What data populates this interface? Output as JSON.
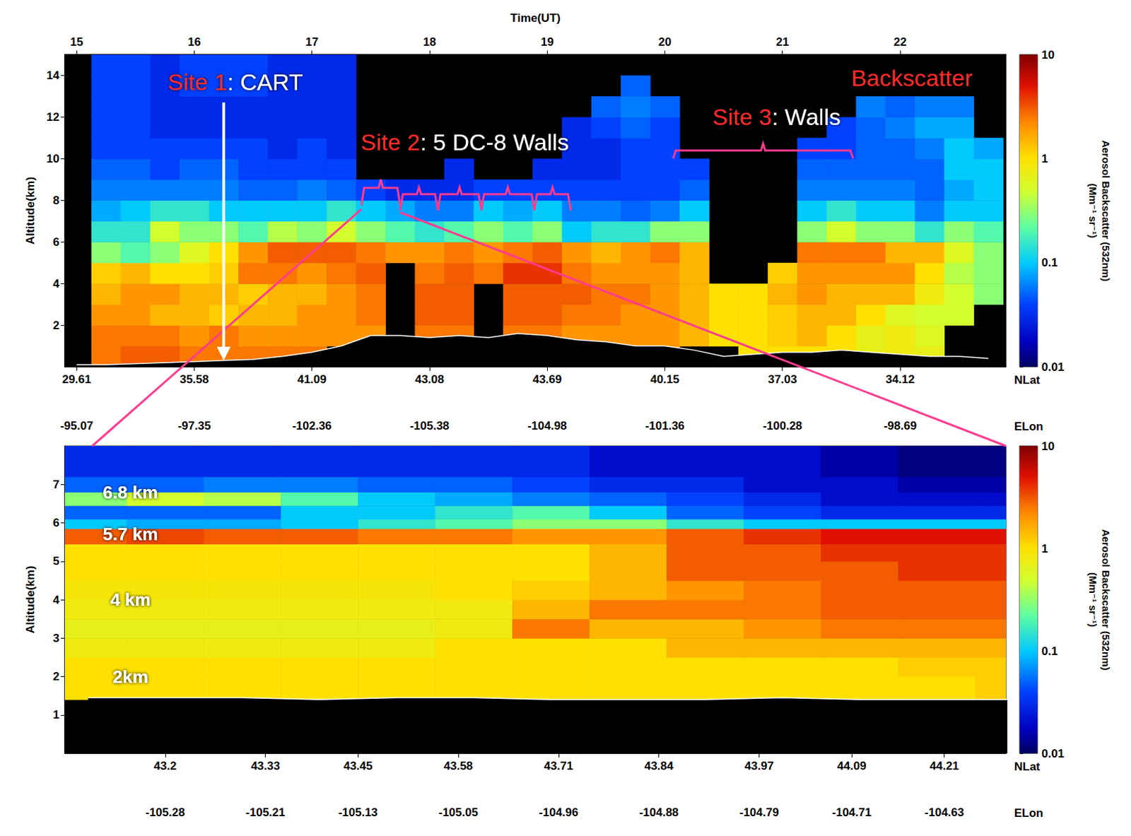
{
  "chart_data": [
    {
      "type": "heatmap",
      "x_label": "Time(UT)",
      "y_label": "Altitude(km)",
      "xlim": [
        14.9,
        22.9
      ],
      "xticks": [
        15,
        16,
        17,
        18,
        19,
        20,
        21,
        22
      ],
      "ylim": [
        0,
        15
      ],
      "yticks": [
        2,
        4,
        6,
        8,
        10,
        12,
        14
      ],
      "grid": false,
      "secondary_x_axes": [
        {
          "label": "NLat",
          "ticks": [
            {
              "value": 15,
              "label": "29.61"
            },
            {
              "value": 16,
              "label": "35.58"
            },
            {
              "value": 17,
              "label": "41.09"
            },
            {
              "value": 18,
              "label": "43.08"
            },
            {
              "value": 19,
              "label": "43.69"
            },
            {
              "value": 20,
              "label": "40.15"
            },
            {
              "value": 21,
              "label": "37.03"
            },
            {
              "value": 22,
              "label": "34.12"
            }
          ]
        },
        {
          "label": "ELon",
          "ticks": [
            {
              "value": 15,
              "label": "-95.07"
            },
            {
              "value": 16,
              "label": "-97.35"
            },
            {
              "value": 17,
              "label": "-102.36"
            },
            {
              "value": 18,
              "label": "-105.38"
            },
            {
              "value": 19,
              "label": "-104.98"
            },
            {
              "value": 20,
              "label": "-101.36"
            },
            {
              "value": 21,
              "label": "-100.28"
            },
            {
              "value": 22,
              "label": "-98.69"
            }
          ]
        }
      ],
      "x_edges": [
        14.875,
        15.125,
        15.375,
        15.625,
        15.875,
        16.125,
        16.375,
        16.625,
        16.875,
        17.125,
        17.375,
        17.625,
        17.875,
        18.125,
        18.375,
        18.625,
        18.875,
        19.125,
        19.375,
        19.625,
        19.875,
        20.125,
        20.375,
        20.625,
        20.875,
        21.125,
        21.375,
        21.625,
        21.875,
        22.125,
        22.375,
        22.625,
        22.875
      ],
      "y_edges": [
        0,
        1,
        2,
        3,
        4,
        5,
        6,
        7,
        8,
        9,
        10,
        11,
        12,
        13,
        14,
        15
      ],
      "cells": [
        [
          null,
          null,
          null,
          null,
          null,
          null,
          null,
          null,
          null,
          null,
          null,
          null,
          null,
          null,
          null
        ],
        [
          2.5,
          2.5,
          2,
          1.5,
          1.2,
          0.3,
          0.15,
          0.08,
          0.06,
          0.05,
          0.04,
          0.04,
          0.04,
          0.04,
          0.04
        ],
        [
          3,
          2.5,
          2,
          2,
          1.5,
          0.2,
          0.15,
          0.1,
          0.06,
          0.05,
          0.04,
          0.04,
          0.04,
          0.04,
          0.04
        ],
        [
          3,
          2.5,
          1.5,
          2,
          1,
          0.3,
          0.5,
          0.15,
          0.06,
          0.04,
          0.04,
          0.03,
          0.03,
          0.03,
          0.03
        ],
        [
          2.5,
          2,
          1.5,
          1.5,
          1,
          0.6,
          0.3,
          0.15,
          0.06,
          0.05,
          0.04,
          0.03,
          0.03,
          0.04,
          0.04
        ],
        [
          2.5,
          2.5,
          1.2,
          1.5,
          1.2,
          1,
          0.3,
          0.1,
          0.06,
          0.05,
          0.04,
          0.03,
          0.03,
          0.04,
          0.04
        ],
        [
          2.5,
          2,
          1.5,
          1.2,
          2.5,
          2,
          0.2,
          0.1,
          0.05,
          0.04,
          0.04,
          0.03,
          0.03,
          0.04,
          0.04
        ],
        [
          2.5,
          2,
          1.5,
          1.5,
          2.5,
          3,
          0.4,
          0.1,
          0.05,
          0.04,
          0.03,
          0.03,
          0.03,
          0.03,
          0.03
        ],
        [
          2.5,
          2,
          2,
          1.5,
          2,
          3,
          0.3,
          0.1,
          0.06,
          0.04,
          0.04,
          0.03,
          0.03,
          0.03,
          0.03
        ],
        [
          null,
          2,
          2,
          2,
          2.5,
          3,
          0.5,
          0.15,
          0.05,
          0.04,
          0.03,
          0.03,
          0.03,
          0.03,
          0.03
        ],
        [
          null,
          2,
          2.5,
          2.5,
          3,
          2.5,
          0.3,
          0.1,
          0.04,
          null,
          null,
          null,
          null,
          null,
          null
        ],
        [
          null,
          null,
          null,
          null,
          null,
          2,
          0.2,
          0.08,
          0.03,
          null,
          null,
          null,
          null,
          null,
          null
        ],
        [
          null,
          2.5,
          3,
          3,
          2.5,
          2,
          0.15,
          0.06,
          0.03,
          null,
          null,
          null,
          null,
          null,
          null
        ],
        [
          null,
          2.5,
          3,
          3,
          3,
          2.5,
          0.2,
          0.06,
          0.03,
          0.03,
          null,
          null,
          null,
          null,
          null
        ],
        [
          null,
          null,
          null,
          null,
          2.5,
          2,
          0.3,
          0.1,
          0.04,
          null,
          null,
          null,
          null,
          null,
          null
        ],
        [
          null,
          2.5,
          3,
          3,
          4,
          2.5,
          0.2,
          0.08,
          0.04,
          null,
          null,
          null,
          null,
          null,
          null
        ],
        [
          null,
          2.5,
          3,
          3,
          4,
          3,
          0.3,
          0.1,
          0.04,
          0.03,
          null,
          null,
          null,
          null,
          null
        ],
        [
          null,
          2,
          2.5,
          3,
          2.5,
          2,
          0.1,
          0.06,
          0.04,
          0.03,
          0.03,
          0.03,
          null,
          null,
          null
        ],
        [
          2,
          2,
          2.5,
          2.5,
          2,
          1.5,
          0.15,
          0.06,
          0.04,
          0.03,
          0.03,
          0.04,
          0.05,
          null,
          null
        ],
        [
          2,
          2,
          2,
          2.5,
          2,
          2,
          0.15,
          0.05,
          0.04,
          0.04,
          0.04,
          0.05,
          0.06,
          0.05,
          null
        ],
        [
          2,
          2,
          2,
          2,
          2,
          2.5,
          0.3,
          0.06,
          0.04,
          0.04,
          0.04,
          0.04,
          0.05,
          null,
          null
        ],
        [
          null,
          1.5,
          1.5,
          1.5,
          1.5,
          1.5,
          0.3,
          0.1,
          0.05,
          0.04,
          null,
          null,
          null,
          null,
          null
        ],
        [
          null,
          1,
          1,
          1,
          null,
          null,
          null,
          null,
          null,
          null,
          null,
          null,
          null,
          null,
          null
        ],
        [
          1,
          1,
          1,
          1,
          null,
          null,
          null,
          null,
          null,
          null,
          null,
          null,
          null,
          null,
          null
        ],
        [
          1,
          1.2,
          1.2,
          1.5,
          1.2,
          null,
          null,
          null,
          null,
          null,
          null,
          null,
          null,
          null,
          null
        ],
        [
          1,
          1.5,
          1.5,
          2,
          2,
          2.5,
          0.3,
          0.1,
          0.06,
          0.05,
          0.04,
          null,
          null,
          null,
          null
        ],
        [
          1,
          1,
          1.5,
          1.5,
          2,
          2.5,
          0.5,
          0.15,
          0.06,
          0.05,
          0.04,
          0.04,
          null,
          null,
          null
        ],
        [
          0.7,
          0.7,
          1,
          1.5,
          2,
          2.5,
          0.3,
          0.1,
          0.06,
          0.05,
          0.05,
          0.05,
          0.06,
          null,
          null
        ],
        [
          0.8,
          0.8,
          0.6,
          1.5,
          2,
          1.5,
          0.3,
          0.1,
          0.06,
          0.05,
          0.05,
          0.06,
          0.05,
          null,
          null
        ],
        [
          0.7,
          0.6,
          0.5,
          0.8,
          1,
          1.5,
          0.15,
          0.06,
          0.05,
          0.05,
          0.06,
          0.08,
          0.06,
          null,
          null
        ],
        [
          null,
          null,
          0.5,
          0.5,
          0.4,
          0.6,
          0.3,
          0.1,
          0.08,
          0.1,
          0.1,
          0.08,
          0.06,
          null,
          null
        ],
        [
          null,
          null,
          null,
          0.3,
          0.3,
          0.3,
          0.2,
          0.1,
          0.1,
          0.1,
          0.08,
          null,
          null,
          null,
          null
        ]
      ],
      "surface": {
        "x": [
          15,
          15.25,
          15.5,
          15.75,
          16,
          16.25,
          16.5,
          16.75,
          17,
          17.25,
          17.5,
          17.75,
          18,
          18.25,
          18.5,
          18.75,
          19,
          19.25,
          19.5,
          19.75,
          20,
          20.25,
          20.5,
          20.75,
          21,
          21.25,
          21.5,
          21.75,
          22,
          22.25,
          22.5,
          22.75
        ],
        "y": [
          0.1,
          0.1,
          0.15,
          0.2,
          0.25,
          0.3,
          0.35,
          0.5,
          0.7,
          1.0,
          1.5,
          1.5,
          1.4,
          1.5,
          1.4,
          1.6,
          1.5,
          1.3,
          1.2,
          1.0,
          1.0,
          0.8,
          0.5,
          0.6,
          0.7,
          0.7,
          0.8,
          0.7,
          0.6,
          0.5,
          0.5,
          0.4
        ]
      },
      "colorbar": {
        "label": "Aerosol Backscatter (532nm)",
        "unit": "(Mm⁻¹ sr⁻¹)",
        "range": [
          0.01,
          10
        ],
        "ticks": [
          0.01,
          0.1,
          1,
          10
        ],
        "log": true
      },
      "annotations": [
        {
          "parts": [
            {
              "text": "Site 1",
              "color": "#ff2a2a"
            },
            {
              "text": ": CART",
              "color": "#ffffff"
            }
          ],
          "x": 16.35,
          "y": 13.7
        },
        {
          "parts": [
            {
              "text": "Site 2",
              "color": "#ff2a2a"
            },
            {
              "text": ": 5 DC-8 Walls",
              "color": "#ffffff"
            }
          ],
          "x": 18.3,
          "y": 10.8
        },
        {
          "parts": [
            {
              "text": "Site 3",
              "color": "#ff2a2a"
            },
            {
              "text": ": Walls",
              "color": "#ffffff"
            }
          ],
          "x": 20.95,
          "y": 12.0
        },
        {
          "parts": [
            {
              "text": "Backscatter",
              "color": "#ff2a2a"
            }
          ],
          "x": 22.1,
          "y": 13.9
        }
      ]
    },
    {
      "type": "heatmap",
      "x_label": "NLat",
      "y_label": "Altitude(km)",
      "xlim": [
        43.07,
        44.29
      ],
      "xticks": [
        43.2,
        43.33,
        43.45,
        43.58,
        43.71,
        43.84,
        43.97,
        44.09,
        44.21
      ],
      "ylim": [
        0,
        8
      ],
      "yticks": [
        1,
        2,
        3,
        4,
        5,
        6,
        7
      ],
      "grid": false,
      "secondary_x_axes": [
        {
          "label": "ELon",
          "ticks": [
            {
              "value": 43.2,
              "label": "-105.28"
            },
            {
              "value": 43.33,
              "label": "-105.21"
            },
            {
              "value": 43.45,
              "label": "-105.13"
            },
            {
              "value": 43.58,
              "label": "-105.05"
            },
            {
              "value": 43.71,
              "label": "-104.96"
            },
            {
              "value": 43.84,
              "label": "-104.88"
            },
            {
              "value": 43.97,
              "label": "-104.79"
            },
            {
              "value": 44.09,
              "label": "-104.71"
            },
            {
              "value": 44.21,
              "label": "-104.63"
            }
          ]
        }
      ],
      "x_edges": [
        43.05,
        43.15,
        43.25,
        43.35,
        43.45,
        43.55,
        43.65,
        43.75,
        43.85,
        43.95,
        44.05,
        44.15,
        44.25,
        44.35
      ],
      "y_edges": [
        1.4,
        2,
        2.5,
        3,
        3.5,
        4,
        4.5,
        5,
        5.45,
        5.85,
        6.1,
        6.45,
        6.8,
        7.2,
        8
      ],
      "cells": [
        [
          1,
          1,
          0.8,
          0.7,
          0.8,
          0.9,
          1,
          1,
          3,
          0.1,
          0.05,
          0.3,
          0.05,
          0.03
        ],
        [
          1,
          1,
          0.8,
          0.7,
          0.8,
          0.9,
          1,
          1,
          3.5,
          0.08,
          0.05,
          0.5,
          0.05,
          0.03
        ],
        [
          1,
          1,
          0.8,
          0.7,
          0.8,
          0.9,
          1,
          1,
          3,
          0.08,
          0.05,
          0.4,
          0.06,
          0.03
        ],
        [
          1,
          1,
          0.8,
          0.7,
          0.8,
          0.9,
          1,
          1,
          3,
          0.1,
          0.1,
          0.2,
          0.06,
          0.03
        ],
        [
          1,
          1,
          0.8,
          0.7,
          0.8,
          0.9,
          1,
          1,
          2.5,
          0.15,
          0.1,
          0.1,
          0.05,
          0.03
        ],
        [
          1,
          1,
          1,
          0.8,
          0.8,
          1,
          1,
          1,
          2.5,
          0.2,
          0.15,
          0.08,
          0.05,
          0.03
        ],
        [
          1,
          1,
          1,
          2.5,
          1.5,
          1.2,
          1,
          1,
          2,
          0.3,
          0.2,
          0.06,
          0.04,
          0.03
        ],
        [
          1,
          1,
          1,
          1.5,
          2.5,
          1.5,
          1.5,
          1.5,
          2,
          0.3,
          0.1,
          0.05,
          0.03,
          0.02
        ],
        [
          1,
          1,
          1.5,
          1.5,
          2.5,
          2,
          3,
          3,
          3,
          0.15,
          0.05,
          0.04,
          0.03,
          0.02
        ],
        [
          1,
          1,
          1.5,
          2,
          2.5,
          2.5,
          3,
          3,
          4,
          0.1,
          0.04,
          0.03,
          0.02,
          0.02
        ],
        [
          1,
          1,
          1.5,
          2.5,
          3,
          3,
          3,
          4,
          5,
          0.1,
          0.03,
          0.02,
          0.02,
          0.015
        ],
        [
          1,
          1.2,
          1.5,
          2.5,
          3,
          3,
          4,
          4,
          5,
          0.1,
          0.03,
          0.02,
          0.015,
          0.012
        ],
        [
          1.2,
          1.2,
          1.5,
          2.5,
          3,
          3,
          4,
          4,
          5,
          0.1,
          0.03,
          0.02,
          0.015,
          0.012
        ]
      ],
      "surface": {
        "x": [
          43.1,
          43.2,
          43.3,
          43.4,
          43.5,
          43.6,
          43.7,
          43.8,
          43.9,
          44.0,
          44.1,
          44.2,
          44.3
        ],
        "y": [
          1.45,
          1.45,
          1.45,
          1.4,
          1.45,
          1.45,
          1.4,
          1.4,
          1.4,
          1.45,
          1.4,
          1.4,
          1.4
        ]
      },
      "colorbar": {
        "label": "Aerosol Backscatter (532nm)",
        "unit": "(Mm⁻¹ sr⁻¹)",
        "range": [
          0.01,
          10
        ],
        "ticks": [
          0.01,
          0.1,
          1,
          10
        ],
        "log": true
      },
      "annotations": [
        {
          "parts": [
            {
              "text": "6.8 km",
              "color": "#ffffff"
            }
          ],
          "x": 43.155,
          "y": 6.8
        },
        {
          "parts": [
            {
              "text": "5.7 km",
              "color": "#ffffff"
            }
          ],
          "x": 43.155,
          "y": 5.7
        },
        {
          "parts": [
            {
              "text": "4 km",
              "color": "#ffffff"
            }
          ],
          "x": 43.155,
          "y": 4.0
        },
        {
          "parts": [
            {
              "text": "2km",
              "color": "#ffffff"
            }
          ],
          "x": 43.155,
          "y": 2.0
        }
      ]
    }
  ]
}
